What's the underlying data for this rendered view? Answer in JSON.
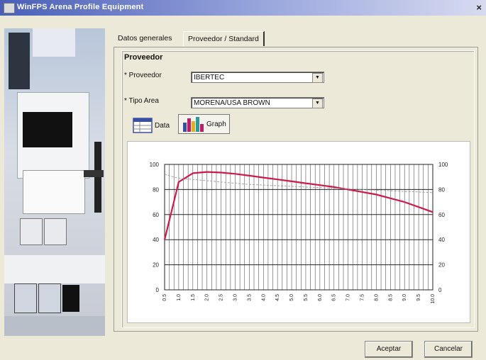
{
  "window": {
    "title": "WinFPS Arena Profile Equipment",
    "close_glyph": "×"
  },
  "tabs": [
    {
      "label": "Datos generales",
      "active": false
    },
    {
      "label": "Proveedor / Standard",
      "active": true
    }
  ],
  "section": {
    "title": "Proveedor",
    "fields": [
      {
        "label": "* Proveedor",
        "value": "IBERTEC"
      },
      {
        "label": "* Tipo Area",
        "value": "MORENA/USA BROWN"
      }
    ]
  },
  "subtabs": [
    {
      "label": "Data",
      "icon": "table-icon",
      "active": false
    },
    {
      "label": "Graph",
      "icon": "bar-chart-icon",
      "active": true
    }
  ],
  "buttons": {
    "accept": "Aceptar",
    "cancel": "Cancelar"
  },
  "colors": {
    "curve": "#cc1a4a",
    "grid": "#333333",
    "title_bar": "#4a5fb8"
  },
  "chart_data": {
    "type": "line",
    "grid": true,
    "ylim": [
      0,
      100
    ],
    "yticks": [
      0,
      20,
      40,
      60,
      80,
      100
    ],
    "xtick_labels": [
      "0.5",
      "1.0",
      "1.5",
      "2.0",
      "2.5",
      "3.0",
      "3.5",
      "4.0",
      "4.5",
      "5.0",
      "5.5",
      "6.0",
      "6.5",
      "7.0",
      "7.5",
      "8.0",
      "8.5",
      "9.0",
      "9.5",
      "10.0"
    ],
    "series": [
      {
        "values": [
          40,
          86,
          93,
          94,
          93.5,
          92.5,
          91,
          89.5,
          88,
          86.5,
          85,
          83.5,
          82,
          80,
          78,
          76,
          73,
          70,
          66,
          62
        ]
      },
      {
        "values": [
          92,
          89,
          88,
          87,
          86,
          85,
          84,
          83.5,
          83,
          82.5,
          82,
          81.5,
          81,
          80.5,
          80,
          79.5,
          79,
          78.5,
          78,
          77.5
        ]
      }
    ]
  }
}
